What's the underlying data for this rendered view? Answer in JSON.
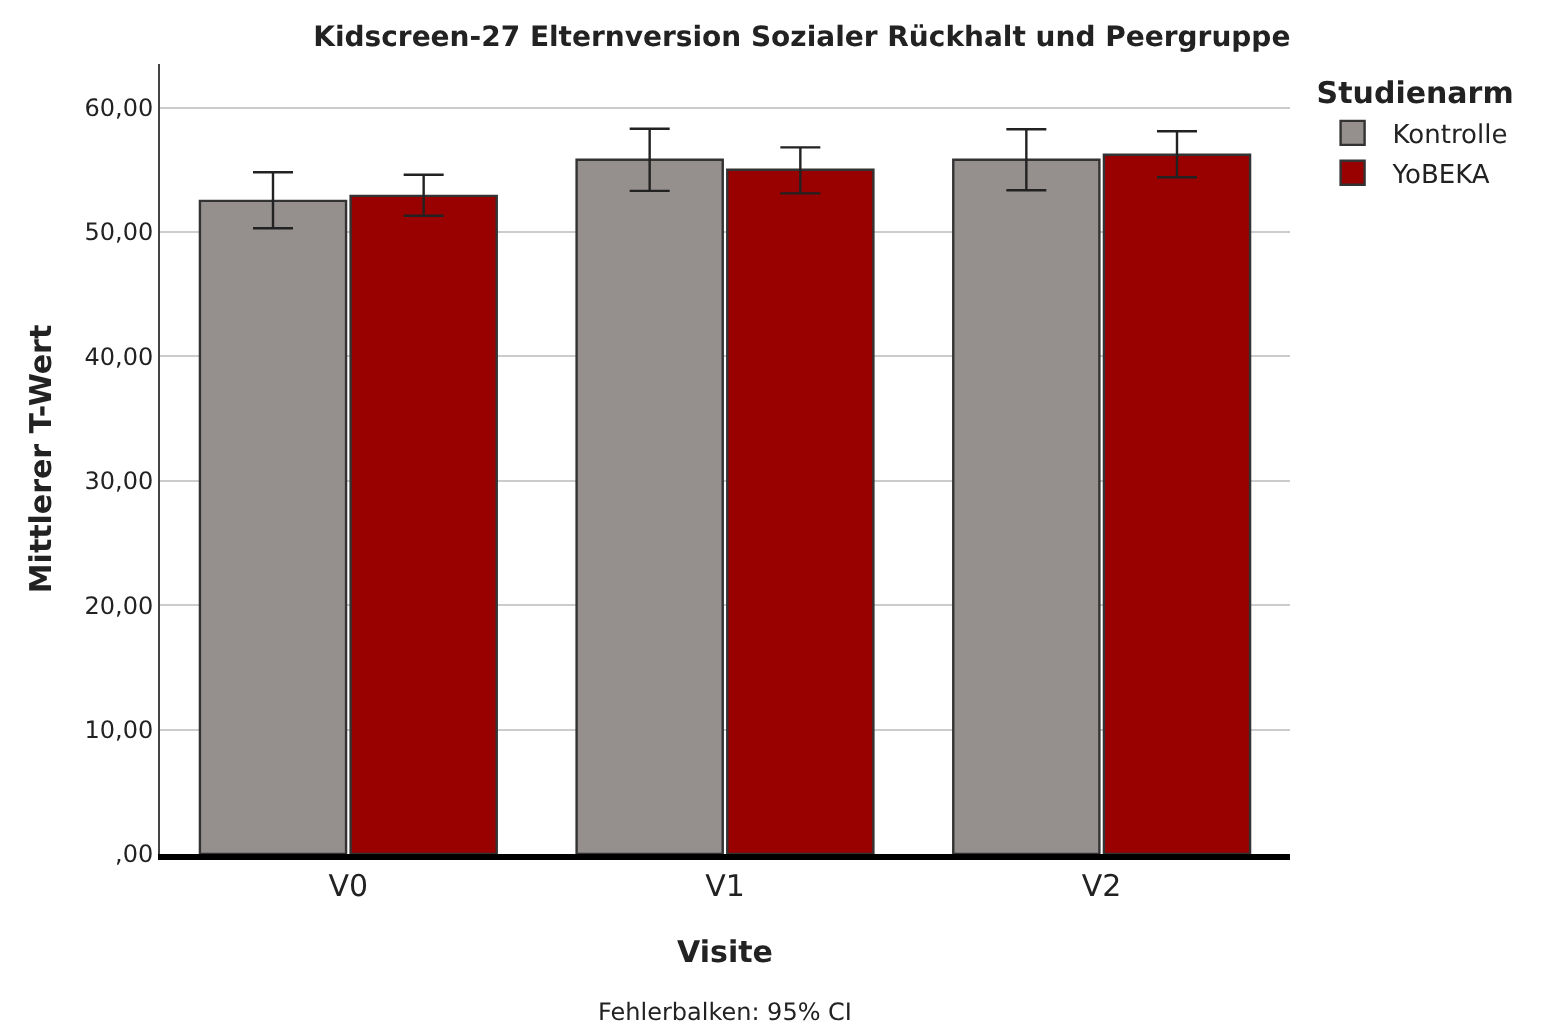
{
  "chart_data": {
    "type": "bar",
    "title": "Kidscreen-27 Elternversion Sozialer Rückhalt und Peergruppe",
    "xlabel": "Visite",
    "ylabel": "Mittlerer T-Wert",
    "legend_title": "Studienarm",
    "categories": [
      "V0",
      "V1",
      "V2"
    ],
    "series": [
      {
        "name": "Kontrolle",
        "color": "#958f8e",
        "values": [
          52.5,
          55.8,
          55.8
        ],
        "errors": [
          [
            50.3,
            54.8
          ],
          [
            53.3,
            58.3
          ],
          [
            53.35,
            58.25
          ]
        ]
      },
      {
        "name": "YoBEKA",
        "color": "#990000",
        "values": [
          52.9,
          55.0,
          56.2
        ],
        "errors": [
          [
            51.3,
            54.6
          ],
          [
            53.1,
            56.8
          ],
          [
            54.4,
            58.1
          ]
        ]
      }
    ],
    "ylim": [
      0,
      63.5
    ],
    "yticks": [
      {
        "value": 0,
        "label": ",00"
      },
      {
        "value": 10,
        "label": "10,00"
      },
      {
        "value": 20,
        "label": "20,00"
      },
      {
        "value": 30,
        "label": "30,00"
      },
      {
        "value": 40,
        "label": "40,00"
      },
      {
        "value": 50,
        "label": "50,00"
      },
      {
        "value": 60,
        "label": "60,00"
      }
    ],
    "grid": "y",
    "legend": "top right",
    "annotations": [
      "Fehlerbalken: 95% CI"
    ]
  }
}
